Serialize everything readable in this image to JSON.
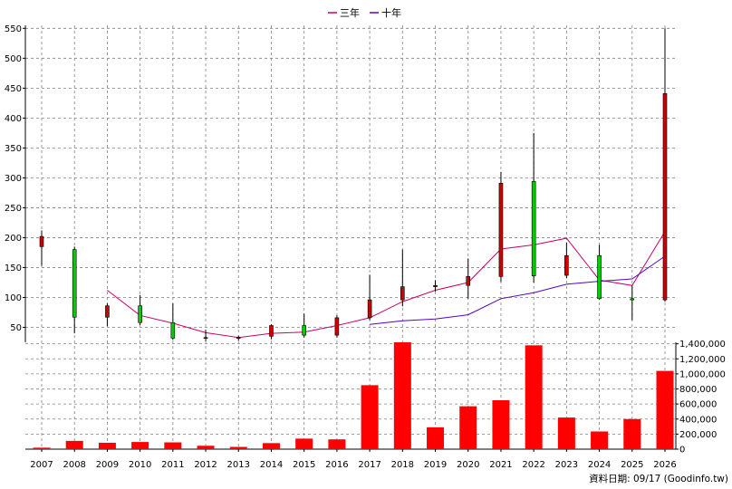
{
  "chart_data": {
    "type": "candlestick+bar",
    "x": [
      "2007",
      "2008",
      "2009",
      "2010",
      "2011",
      "2012",
      "2013",
      "2014",
      "2015",
      "2016",
      "2017",
      "2018",
      "2019",
      "2020",
      "2021",
      "2022",
      "2023",
      "2024",
      "2025",
      "2026"
    ],
    "price_axis": {
      "ticks": [
        50,
        100,
        150,
        200,
        250,
        300,
        350,
        400,
        450,
        500,
        550
      ],
      "range": [
        25,
        555
      ]
    },
    "volume_axis": {
      "ticks": [
        0,
        200000,
        400000,
        600000,
        800000,
        1000000,
        1200000,
        1400000
      ],
      "tick_labels": [
        "0",
        "200,000",
        "400,000",
        "600,000",
        "800,000",
        "1,000,000",
        "1,200,000",
        "1,400,000"
      ],
      "range": [
        0,
        1420000
      ]
    },
    "candles": [
      {
        "year": "2007",
        "open": 185,
        "high": 212,
        "low": 153,
        "close": 202
      },
      {
        "year": "2008",
        "open": 180,
        "high": 185,
        "low": 40,
        "close": 67
      },
      {
        "year": "2009",
        "open": 67,
        "high": 90,
        "low": 52,
        "close": 86
      },
      {
        "year": "2010",
        "open": 86,
        "high": 104,
        "low": 54,
        "close": 58
      },
      {
        "year": "2011",
        "open": 58,
        "high": 90,
        "low": 29,
        "close": 32
      },
      {
        "year": "2012",
        "open": 32,
        "high": 46,
        "low": 27,
        "close": 33
      },
      {
        "year": "2013",
        "open": 33,
        "high": 36,
        "low": 28,
        "close": 33
      },
      {
        "year": "2014",
        "open": 35,
        "high": 55,
        "low": 30,
        "close": 53
      },
      {
        "year": "2015",
        "open": 53,
        "high": 73,
        "low": 33,
        "close": 37
      },
      {
        "year": "2016",
        "open": 37,
        "high": 70,
        "low": 33,
        "close": 66
      },
      {
        "year": "2017",
        "open": 66,
        "high": 138,
        "low": 62,
        "close": 96
      },
      {
        "year": "2018",
        "open": 96,
        "high": 180,
        "low": 85,
        "close": 118
      },
      {
        "year": "2019",
        "open": 118,
        "high": 129,
        "low": 110,
        "close": 120
      },
      {
        "year": "2020",
        "open": 120,
        "high": 165,
        "low": 98,
        "close": 135
      },
      {
        "year": "2021",
        "open": 135,
        "high": 310,
        "low": 126,
        "close": 291
      },
      {
        "year": "2022",
        "open": 294,
        "high": 375,
        "low": 125,
        "close": 136
      },
      {
        "year": "2023",
        "open": 137,
        "high": 192,
        "low": 132,
        "close": 170
      },
      {
        "year": "2024",
        "open": 170,
        "high": 188,
        "low": 96,
        "close": 98
      },
      {
        "year": "2025",
        "open": 98,
        "high": 120,
        "low": 62,
        "close": 96
      },
      {
        "year": "2026",
        "open": 96,
        "high": 550,
        "low": 93,
        "close": 441
      }
    ],
    "series": [
      {
        "name": "三年",
        "color": "#cc0066",
        "values": [
          null,
          null,
          112,
          70,
          57,
          41,
          33,
          40,
          42,
          53,
          66,
          93,
          112,
          125,
          181,
          188,
          199,
          129,
          120,
          210
        ]
      },
      {
        "name": "十年",
        "color": "#5500cc",
        "values": [
          null,
          null,
          null,
          null,
          null,
          null,
          null,
          null,
          null,
          null,
          55,
          61,
          64,
          71,
          98,
          108,
          122,
          127,
          131,
          169
        ]
      }
    ],
    "volume": {
      "color": "#ff0000",
      "values": [
        20000,
        110000,
        85000,
        95000,
        90000,
        45000,
        30000,
        80000,
        140000,
        130000,
        850000,
        1420000,
        290000,
        570000,
        650000,
        1380000,
        420000,
        235000,
        400000,
        1040000
      ]
    },
    "grid": true,
    "legend": "top-center"
  },
  "source_label": "資料日期: 09/17  (Goodinfo.tw)",
  "colors": {
    "up": "#cc0000",
    "down": "#00cc00",
    "grid": "#808080"
  }
}
